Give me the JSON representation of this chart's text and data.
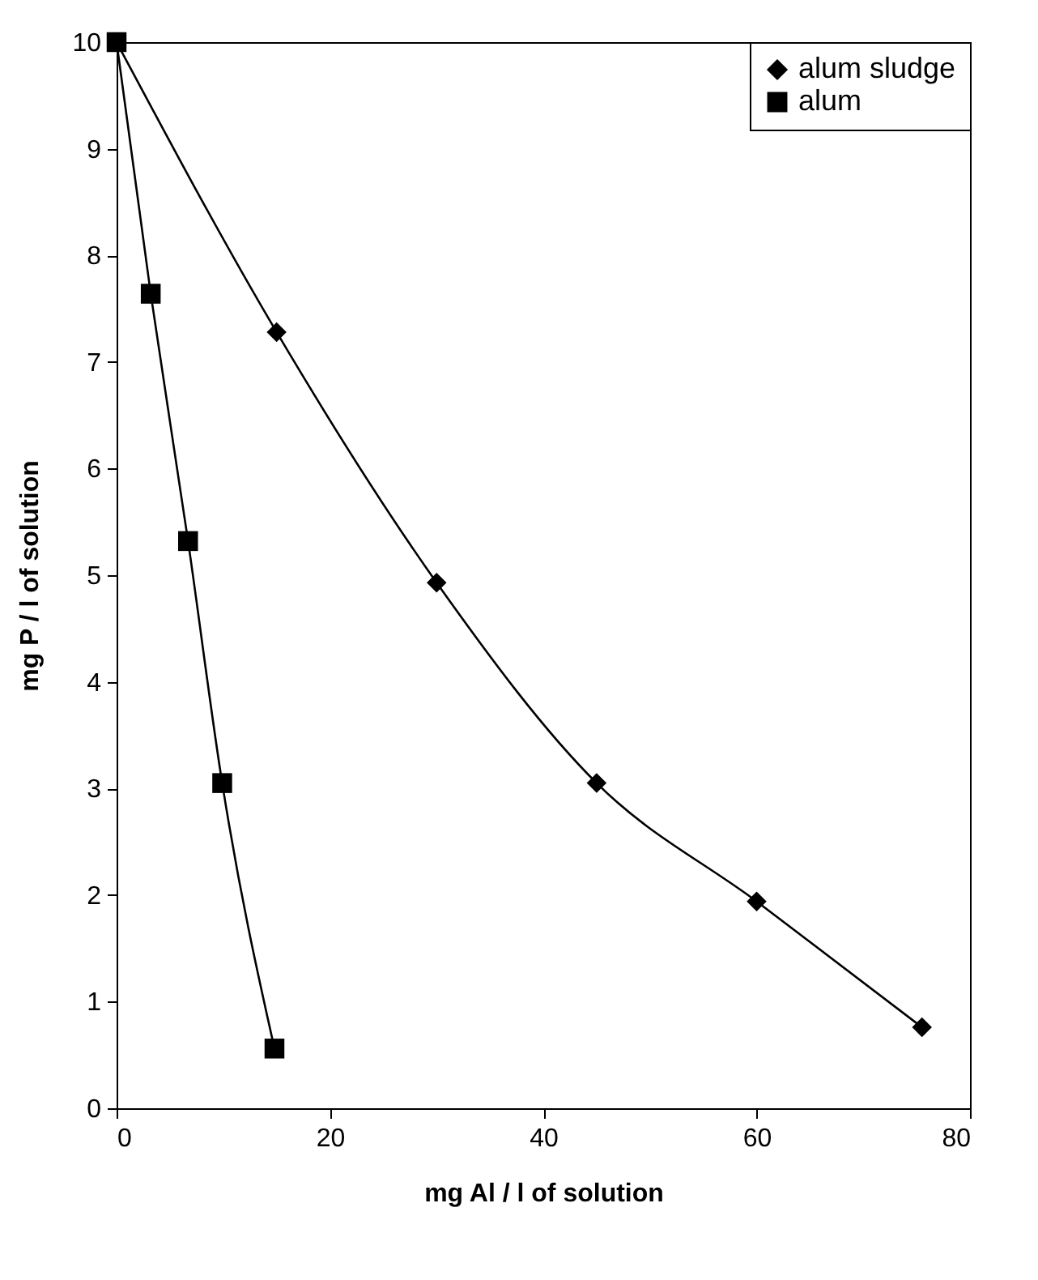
{
  "chart_data": {
    "type": "line",
    "xlabel": "mg Al / l of solution",
    "ylabel": "mg P / l of solution",
    "xlim": [
      0,
      80
    ],
    "xticks": [
      0,
      20,
      40,
      60,
      80
    ],
    "ylim": [
      0,
      10
    ],
    "yticks": [
      0,
      1,
      2,
      3,
      4,
      5,
      6,
      7,
      8,
      9,
      10
    ],
    "grid": false,
    "legend": "top right",
    "series": [
      {
        "name": "alum sludge",
        "color": "#000000",
        "marker": "diamond",
        "x": [
          0,
          15,
          30,
          45,
          60,
          75.5
        ],
        "values": [
          10,
          7.28,
          4.93,
          3.05,
          1.94,
          0.76
        ]
      },
      {
        "name": "alum",
        "color": "#000000",
        "marker": "square",
        "x": [
          0,
          3.2,
          6.7,
          9.9,
          14.8
        ],
        "values": [
          10,
          7.64,
          5.32,
          3.05,
          0.56
        ]
      }
    ]
  }
}
